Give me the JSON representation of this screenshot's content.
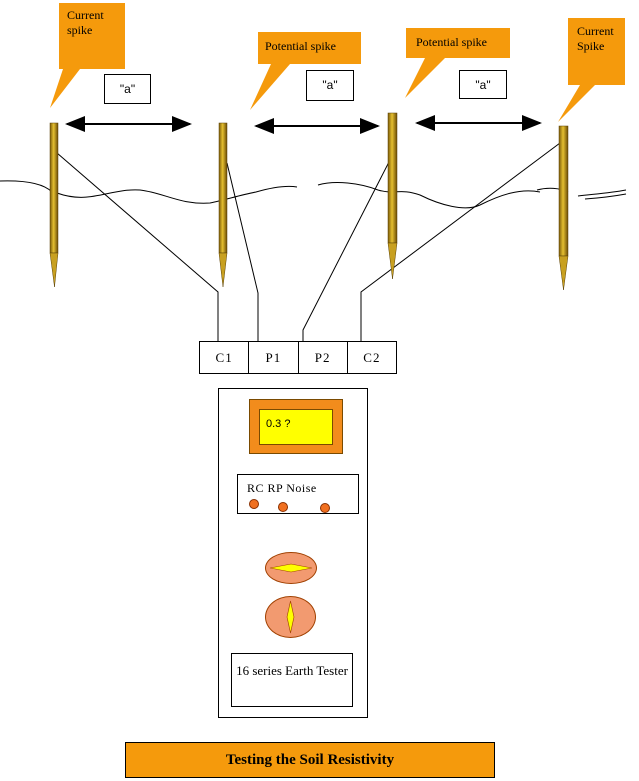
{
  "callouts": [
    {
      "id": "c1",
      "text": "Current spike"
    },
    {
      "id": "p1",
      "text": "Potential spike"
    },
    {
      "id": "p2",
      "text": "Potential spike"
    },
    {
      "id": "c2",
      "text": "Current Spike"
    }
  ],
  "spacing_labels": [
    "\"a\"",
    "\"a\"",
    "\"a\""
  ],
  "terminals": [
    "C1",
    "P1",
    "P2",
    "C2"
  ],
  "tester": {
    "reading": "0.3 ?",
    "indicator_label": "RC RP Noise",
    "model_name": "16 series Earth Tester"
  },
  "title": "Testing the Soil Resistivity",
  "colors": {
    "callout_orange": "#f59a0c",
    "spike_gold": "#c8a020",
    "display_orange": "#f28c1c",
    "display_screen": "#ffff00",
    "led": "#f07020",
    "knob": "#f29a70"
  }
}
